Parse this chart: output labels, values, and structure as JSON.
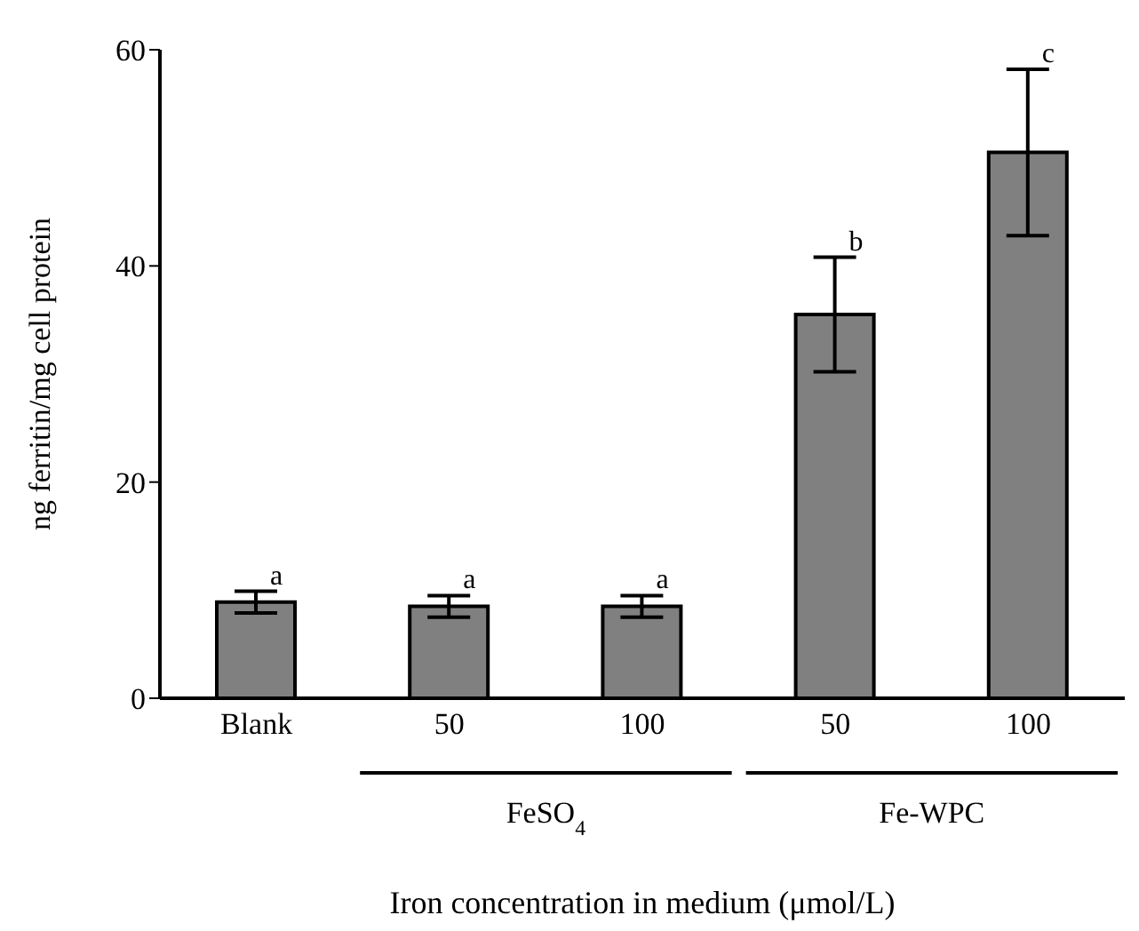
{
  "chart_data": {
    "type": "bar",
    "categories": [
      "Blank",
      "50",
      "100",
      "50",
      "100"
    ],
    "values": [
      8.9,
      8.5,
      8.5,
      35.5,
      50.5
    ],
    "errors": [
      1,
      1,
      1,
      5.3,
      7.7
    ],
    "value_labels": [
      "a",
      "a",
      "a",
      "b",
      "c"
    ],
    "color": "#808080",
    "ylabel": "ng ferritin/mg cell protein",
    "xlabel": "Iron concentration in medium (μmol/L)",
    "annotations": [
      "FeSO$_{4}$",
      "Fe-WPC"
    ],
    "ylim": [
      0,
      60
    ],
    "yticks": [
      0,
      20,
      40,
      60
    ],
    "grid": false,
    "legend": false
  }
}
